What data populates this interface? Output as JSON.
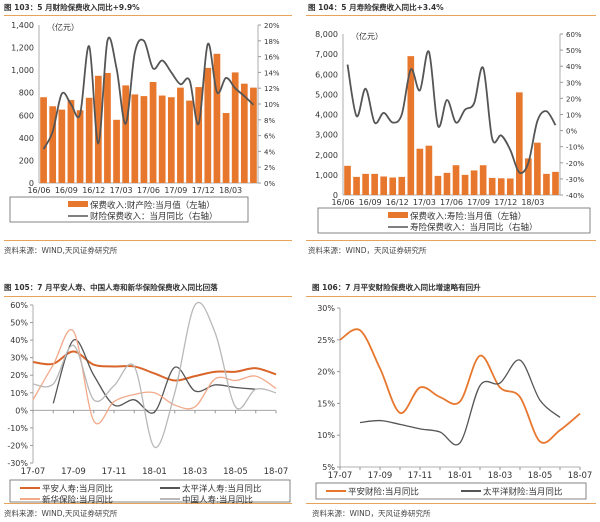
{
  "colors": {
    "orange": "#e8772e",
    "dark": "#555555",
    "light_orange": "#f2a98a",
    "gray": "#b8b8b8",
    "rule": "#e8a25a"
  },
  "panels": [
    {
      "title": "图 103：5 月财险保费收入同比+9.9%",
      "source": "资料来源：WIND,天风证券研究所"
    },
    {
      "title": "图 104：5 月寿险保费收入同比+3.4%",
      "source": "资料来源：WIND，天风证券研究所"
    },
    {
      "title": "图 105：7 月平安人寿、中国人寿和新华保险保费收入同比回落",
      "source": "资料来源：WIND,天风证券研究所"
    },
    {
      "title": "图 106：7 月平安财险保费收入同比增速略有回升",
      "source": "资料来源：WIND，天风证券研究所"
    }
  ],
  "chart_data": [
    {
      "type": "bar+line",
      "unit_label": "（亿元）",
      "categories": [
        "16/06",
        "16/07",
        "16/08",
        "16/09",
        "16/10",
        "16/11",
        "16/12",
        "17/01",
        "17/02",
        "17/03",
        "17/04",
        "17/05",
        "17/06",
        "17/07",
        "17/08",
        "17/09",
        "17/10",
        "17/11",
        "17/12",
        "18/01",
        "18/02",
        "18/03",
        "18/04",
        "18/05"
      ],
      "xticks": [
        "16/06",
        "16/09",
        "16/12",
        "17/03",
        "17/06",
        "17/09",
        "17/12",
        "18/03"
      ],
      "ylim_left": [
        0,
        1400
      ],
      "yticks_left": [
        "0",
        "200",
        "400",
        "600",
        "800",
        "1,000",
        "1,200",
        "1,400"
      ],
      "ylim_right": [
        0,
        20
      ],
      "yticks_right": [
        "0%",
        "2%",
        "4%",
        "6%",
        "8%",
        "10%",
        "12%",
        "14%",
        "16%",
        "18%",
        "20%"
      ],
      "series": [
        {
          "name": "保费收入:财产险:当月值（左轴）",
          "type": "bar",
          "axis": "left",
          "values": [
            760,
            680,
            650,
            735,
            645,
            755,
            950,
            975,
            560,
            865,
            785,
            770,
            895,
            775,
            760,
            845,
            730,
            850,
            1020,
            1145,
            620,
            980,
            880,
            845
          ]
        },
        {
          "name": "财险保费收入：当月同比（右轴）",
          "type": "line",
          "axis": "right",
          "values": [
            4.3,
            6.5,
            11.3,
            10,
            8.7,
            17.3,
            5,
            18,
            14.5,
            7.5,
            16.5,
            18,
            14.5,
            15.5,
            14,
            12.5,
            13,
            7.5,
            17.6,
            11.5,
            13.3,
            12,
            11,
            9.9
          ]
        }
      ]
    },
    {
      "type": "bar+line",
      "unit_label": "（亿元）",
      "categories": [
        "16/06",
        "16/07",
        "16/08",
        "16/09",
        "16/10",
        "16/11",
        "16/12",
        "17/01",
        "17/02",
        "17/03",
        "17/04",
        "17/05",
        "17/06",
        "17/07",
        "17/08",
        "17/09",
        "17/10",
        "17/11",
        "17/12",
        "18/01",
        "18/02",
        "18/03",
        "18/04",
        "18/05"
      ],
      "xticks": [
        "16/06",
        "16/09",
        "16/12",
        "17/03",
        "17/06",
        "17/09",
        "17/12",
        "18/03"
      ],
      "ylim_left": [
        0,
        8000
      ],
      "yticks_left": [
        "0",
        "1,000",
        "2,000",
        "3,000",
        "4,000",
        "5,000",
        "6,000",
        "7,000",
        "8,000"
      ],
      "ylim_right": [
        -40,
        60
      ],
      "yticks_right": [
        "-40%",
        "-30%",
        "-20%",
        "-10%",
        "0%",
        "10%",
        "20%",
        "30%",
        "40%",
        "50%",
        "60%"
      ],
      "series": [
        {
          "name": "保费收入:寿险:当月值（左轴）",
          "type": "bar",
          "axis": "left",
          "values": [
            1450,
            900,
            1050,
            1050,
            920,
            870,
            900,
            6900,
            2300,
            2450,
            950,
            1100,
            1480,
            1000,
            1220,
            1480,
            850,
            830,
            820,
            5100,
            1820,
            2600,
            1050,
            1150
          ]
        },
        {
          "name": "寿险保费收入：当月同比（右轴）",
          "type": "line",
          "axis": "right",
          "values": [
            41,
            9,
            26,
            5,
            11,
            5,
            10,
            38,
            25,
            49,
            3,
            19,
            5,
            13,
            17,
            39,
            -5,
            -3,
            -12,
            -26,
            -20,
            6,
            12,
            3.4
          ]
        }
      ]
    },
    {
      "type": "line",
      "categories": [
        "17-07",
        "17-08",
        "17-09",
        "17-10",
        "17-11",
        "17-12",
        "18-01",
        "18-02",
        "18-03",
        "18-04",
        "18-05",
        "18-06",
        "18-07"
      ],
      "xticks": [
        "17-07",
        "17-09",
        "17-11",
        "18-01",
        "18-03",
        "18-05",
        "18-07"
      ],
      "ylim": [
        -30,
        60
      ],
      "yticks": [
        "-30%",
        "-20%",
        "-10%",
        "0%",
        "10%",
        "20%",
        "30%",
        "40%",
        "50%",
        "60%"
      ],
      "series": [
        {
          "name": "平安人寿:当月同比",
          "color": "#d9652a",
          "width": 2,
          "values": [
            27.5,
            26.5,
            33.5,
            26,
            25,
            25,
            21,
            17,
            19.5,
            22,
            22,
            24,
            20.5
          ]
        },
        {
          "name": "太平洋人寿:当月同比",
          "color": "#555555",
          "width": 1.3,
          "values": [
            null,
            4,
            40,
            20,
            3,
            6,
            -1,
            24.5,
            11,
            14.5,
            13,
            12,
            null
          ]
        },
        {
          "name": "新华保险:当月同比",
          "color": "#f2a98a",
          "width": 1.3,
          "values": [
            6,
            26,
            45,
            -6,
            5,
            9,
            10,
            3,
            2,
            18,
            17,
            19.5,
            12.5
          ]
        },
        {
          "name": "中国人寿:当月同比",
          "color": "#b8b8b8",
          "width": 1.3,
          "values": [
            15,
            15,
            37,
            6,
            14,
            25,
            -21,
            10,
            60,
            44,
            2,
            12,
            10
          ]
        }
      ]
    },
    {
      "type": "line",
      "categories": [
        "17-07",
        "17-08",
        "17-09",
        "17-10",
        "17-11",
        "17-12",
        "18-01",
        "18-02",
        "18-03",
        "18-04",
        "18-05",
        "18-06",
        "18-07"
      ],
      "xticks": [
        "17-07",
        "17-09",
        "17-11",
        "18-01",
        "18-03",
        "18-05",
        "18-07"
      ],
      "ylim": [
        5,
        30
      ],
      "yticks": [
        "5%",
        "10%",
        "15%",
        "20%",
        "25%",
        "30%"
      ],
      "series": [
        {
          "name": "平安财险:当月同比",
          "color": "#e8772e",
          "width": 1.8,
          "values": [
            25,
            26.5,
            20.5,
            13.5,
            17.5,
            16,
            15.3,
            22.5,
            17.5,
            16,
            9,
            10.8,
            13.4
          ]
        },
        {
          "name": "太平洋财险:当月同比",
          "color": "#555555",
          "width": 1.3,
          "values": [
            null,
            12,
            12.3,
            11.7,
            11,
            10.5,
            8.8,
            17.8,
            18.2,
            21.8,
            15.5,
            12.8,
            null
          ]
        }
      ]
    }
  ]
}
